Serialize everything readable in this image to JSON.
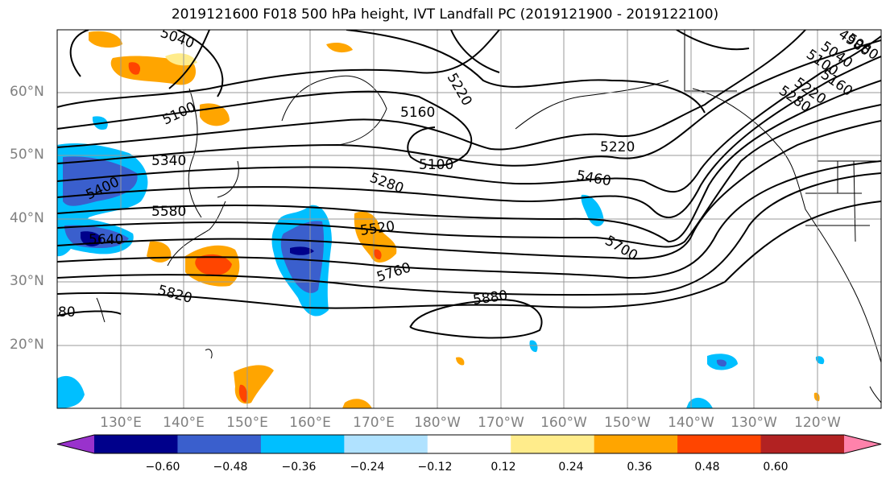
{
  "title": "2019121600 F018 500 hPa height, IVT Landfall PC (2019121900 - 2019122100)",
  "lat_labels": [
    "60°N",
    "50°N",
    "40°N",
    "30°N",
    "20°N"
  ],
  "lon_labels": [
    "130°E",
    "140°E",
    "150°E",
    "160°E",
    "170°E",
    "180°W",
    "170°W",
    "160°W",
    "150°W",
    "140°W",
    "130°W",
    "120°W"
  ],
  "contour_labels": [
    "5160",
    "5220",
    "5100",
    "5220",
    "5280",
    "5340",
    "5400",
    "5460",
    "5520",
    "5580",
    "5640",
    "5700",
    "5760",
    "5820",
    "5880",
    "5100",
    "5040",
    "5160",
    "5220",
    "5280",
    "5100",
    "5080",
    "5040",
    "4980",
    "80"
  ],
  "colorbar": {
    "ticks": [
      "−0.60",
      "−0.48",
      "−0.36",
      "−0.24",
      "−0.12",
      "0.12",
      "0.24",
      "0.36",
      "0.48",
      "0.60"
    ],
    "colors": [
      "#9932cc",
      "#00008b",
      "#3a5fcd",
      "#00bfff",
      "#b0e2ff",
      "#ffffff",
      "#ffec8b",
      "#ffa500",
      "#ff4500",
      "#b22222",
      "#ff82ab"
    ]
  }
}
